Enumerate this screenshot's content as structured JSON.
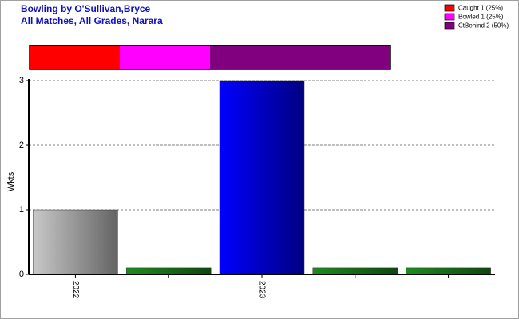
{
  "chart_data": [
    {
      "type": "proportion",
      "title": "Bowling by O'Sullivan,Bryce",
      "subtitle": "All Matches, All Grades, Narara",
      "categories": [
        "Caught 1 (25%)",
        "Bowled 1 (25%)",
        "CtBehind 2 (50%)"
      ],
      "values": [
        25,
        25,
        50
      ],
      "colors": [
        "#ff0000",
        "#ff00ff",
        "#800080"
      ],
      "legend": "top-right"
    },
    {
      "type": "bar",
      "y_label": "Wkts",
      "categories": [
        "2022",
        null,
        "2023",
        null,
        null
      ],
      "values": [
        1,
        0.1,
        3,
        0.1,
        0.1
      ],
      "colors": [
        "#c8c8c8",
        "#1e8c1e",
        "#0000ff",
        "#1e8c1e",
        "#1e8c1e"
      ],
      "ylim": [
        0,
        3
      ],
      "yticks": [
        0,
        1,
        2,
        3
      ],
      "grid": true
    }
  ]
}
